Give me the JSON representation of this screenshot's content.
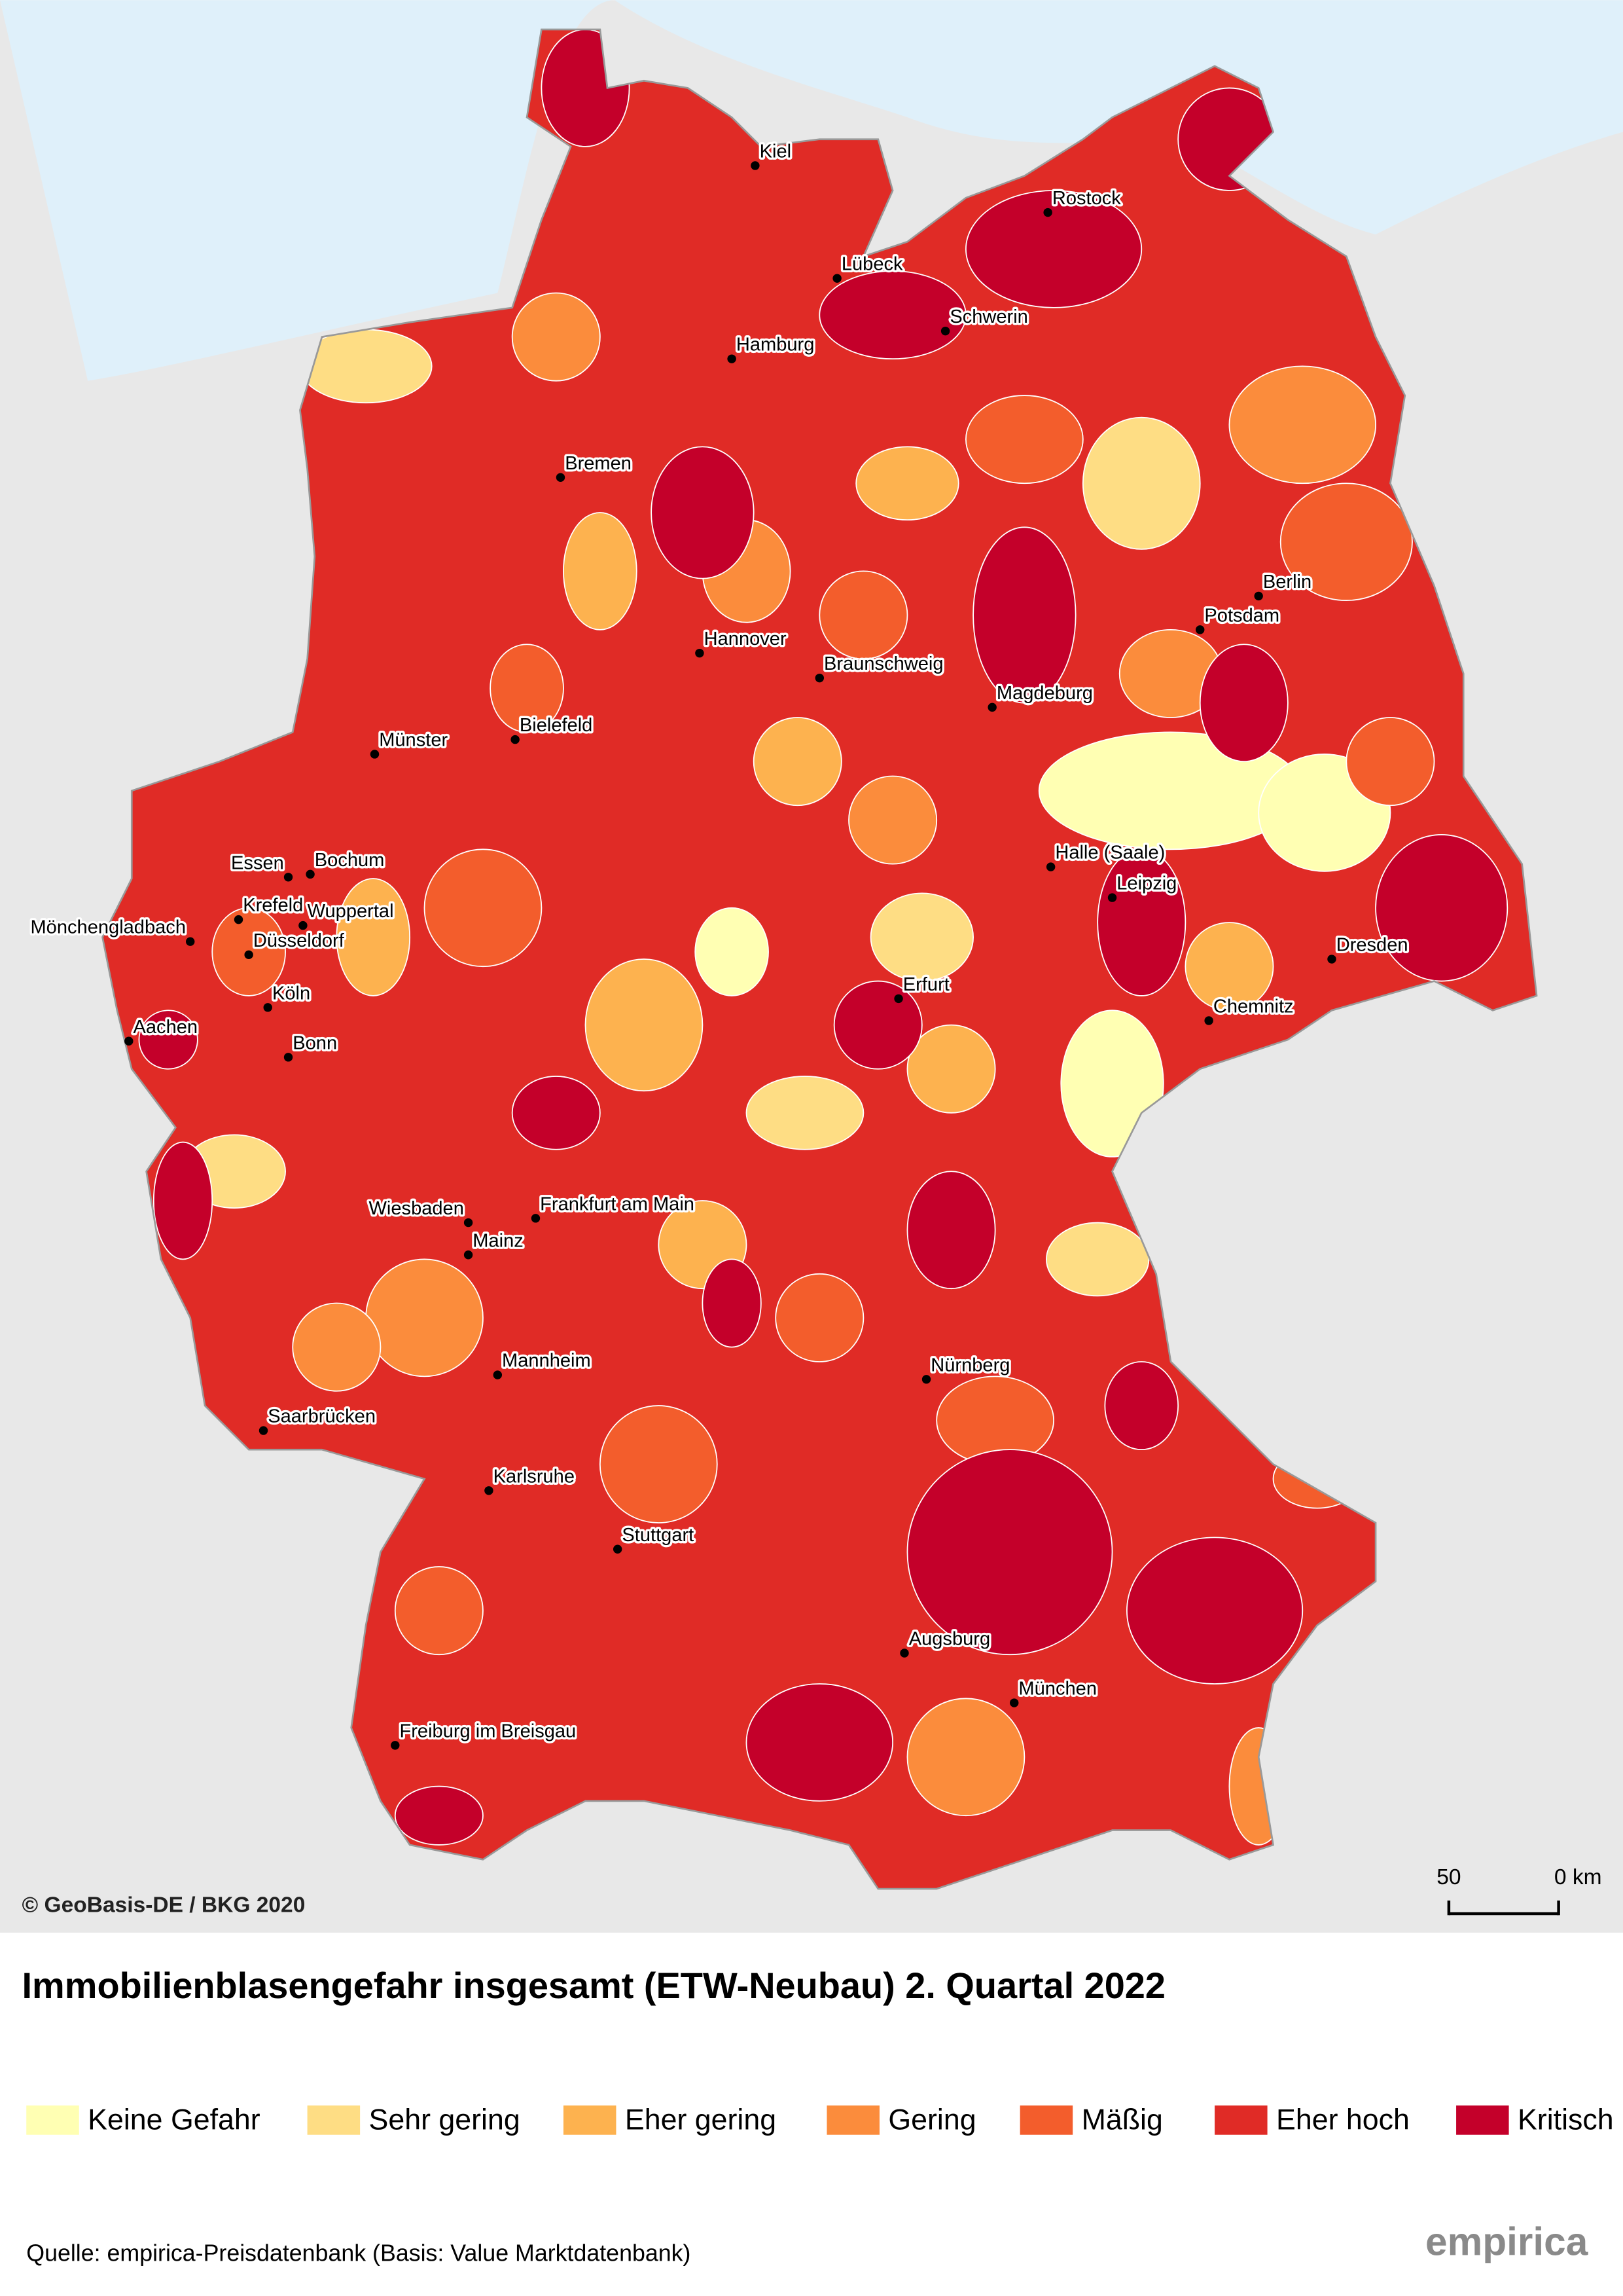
{
  "copyright": "© GeoBasis-DE / BKG 2020",
  "title": "Immobilienblasengefahr insgesamt (ETW-Neubau) 2. Quartal 2022",
  "cities": [
    "Kiel",
    "Rostock",
    "Lübeck",
    "Schwerin",
    "Hamburg",
    "Bremen",
    "Berlin",
    "Potsdam",
    "Hannover",
    "Braunschweig",
    "Magdeburg",
    "Münster",
    "Bielefeld",
    "Essen",
    "Bochum",
    "Halle (Saale)",
    "Leipzig",
    "Krefeld",
    "Wuppertal",
    "Mönchengladbach",
    "Düsseldorf",
    "Dresden",
    "Erfurt",
    "Köln",
    "Chemnitz",
    "Aachen",
    "Bonn",
    "Wiesbaden",
    "Frankfurt am Main",
    "Mainz",
    "Nürnberg",
    "Mannheim",
    "Saarbrücken",
    "Karlsruhe",
    "Stuttgart",
    "Augsburg",
    "München",
    "Freiburg im Breisgau"
  ],
  "scale": [
    "50",
    "0 km"
  ],
  "legend": [
    {
      "label": "Keine Gefahr",
      "color": "#ffffb3"
    },
    {
      "label": "Sehr gering",
      "color": "#fedd84"
    },
    {
      "label": "Eher gering",
      "color": "#fdb24f"
    },
    {
      "label": "Gering",
      "color": "#fb8c3c"
    },
    {
      "label": "Mäßig",
      "color": "#f35d2c"
    },
    {
      "label": "Eher hoch",
      "color": "#e02b26"
    },
    {
      "label": "Kritisch",
      "color": "#c4002a"
    }
  ],
  "source": "Quelle: empirica-Preisdatenbank (Basis: Value Marktdatenbank)",
  "logo": "empirica"
}
